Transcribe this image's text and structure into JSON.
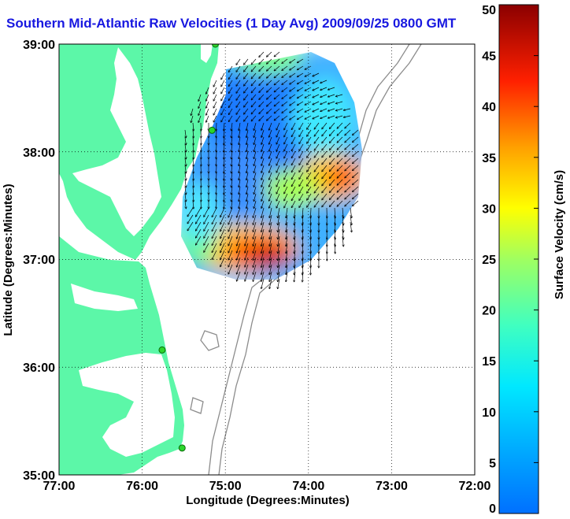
{
  "title": "Southern Mid-Atlantic Raw Velocities (1 Day Avg) 2009/09/25 0800 GMT",
  "map": {
    "xlabel": "Longitude (Degrees:Minutes)",
    "ylabel": "Latitude (Degrees:Minutes)",
    "x_ticks": [
      "77:00",
      "76:00",
      "75:00",
      "74:00",
      "73:00",
      "72:00"
    ],
    "y_ticks": [
      "39:00",
      "38:00",
      "37:00",
      "36:00",
      "35:00"
    ],
    "lon_range": [
      -77,
      -72
    ],
    "lat_range": [
      35,
      39
    ],
    "grid": "dotted",
    "colors": {
      "land": "#5cf7a8",
      "water": "#ffffff",
      "bathymetry": "#8c8c8c",
      "station": "#2bd62b"
    }
  },
  "stations": [
    {
      "lon": -75.12,
      "lat": 39.0
    },
    {
      "lon": -75.16,
      "lat": 38.2
    },
    {
      "lon": -75.76,
      "lat": 36.16
    },
    {
      "lon": -75.52,
      "lat": 35.25
    }
  ],
  "colorbar": {
    "label": "Surface Velocity (cm/s)",
    "ticks": [
      "0",
      "5",
      "10",
      "15",
      "20",
      "25",
      "30",
      "35",
      "40",
      "45",
      "50"
    ],
    "range": [
      0,
      50
    ],
    "colormap": "jet"
  }
}
